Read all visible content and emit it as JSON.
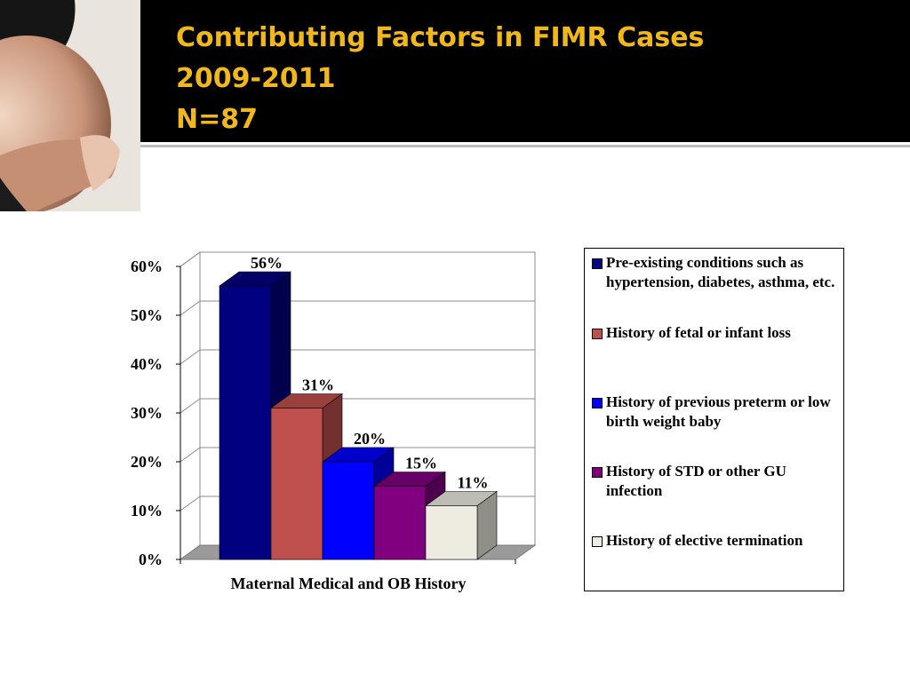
{
  "header": {
    "title_lines": [
      "Contributing Factors in FIMR Cases",
      "2009-2011",
      "N=87"
    ]
  },
  "photo": {
    "icon": "pregnant-belly-photo"
  },
  "colors": {
    "title": "#f0b81c",
    "header_bg": "#000000",
    "series": [
      "#000080",
      "#c0504d",
      "#0000ff",
      "#800080",
      "#eeece1"
    ]
  },
  "chart_data": {
    "type": "bar",
    "style": "3d-clustered",
    "categories": [
      "Maternal Medical and OB History"
    ],
    "xlabel": "Maternal Medical and OB History",
    "ylabel": "",
    "ylim": [
      0,
      0.6
    ],
    "yticks": [
      "0%",
      "10%",
      "20%",
      "30%",
      "40%",
      "50%",
      "60%"
    ],
    "grid": true,
    "legend_position": "right",
    "series": [
      {
        "name": "Pre-existing conditions such as hypertension, diabetes, asthma, etc.",
        "values": [
          0.56
        ],
        "label": "56%"
      },
      {
        "name": "History of fetal or infant loss",
        "values": [
          0.31
        ],
        "label": "31%"
      },
      {
        "name": "History of previous preterm or low birth weight baby",
        "values": [
          0.2
        ],
        "label": "20%"
      },
      {
        "name": "History of STD or other GU infection",
        "values": [
          0.15
        ],
        "label": "15%"
      },
      {
        "name": "History of elective termination",
        "values": [
          0.11
        ],
        "label": "11%"
      }
    ]
  }
}
